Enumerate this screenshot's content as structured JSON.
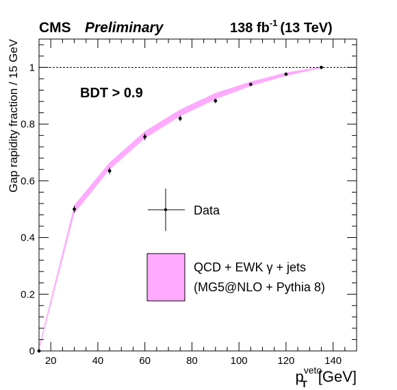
{
  "chart_data": {
    "type": "scatter",
    "title_left": "CMS",
    "title_left_italic": "Preliminary",
    "lumi_value": "138 fb",
    "lumi_exponent": "-1",
    "energy": "(13 TeV)",
    "annotation": "BDT > 0.9",
    "ylabel": "Gap rapidity fraction / 15 GeV",
    "xlabel_main": "p",
    "xlabel_sub": "T",
    "xlabel_sup": "veto",
    "xlabel_unit": "[GeV]",
    "xlim": [
      15,
      150
    ],
    "ylim": [
      0,
      1.1
    ],
    "x_ticks": [
      20,
      40,
      60,
      80,
      100,
      120,
      140
    ],
    "y_ticks": [
      0,
      0.2,
      0.4,
      0.6,
      0.8,
      1
    ],
    "y_tick_labels": [
      "0",
      "0.2",
      "0.4",
      "0.6",
      "0.8",
      "1"
    ],
    "reference_line": 1.0,
    "data": {
      "name": "Data",
      "x": [
        15,
        30,
        45,
        60,
        75,
        90,
        105,
        120,
        135
      ],
      "y": [
        0.0,
        0.5,
        0.635,
        0.755,
        0.82,
        0.882,
        0.94,
        0.976,
        1.0
      ],
      "yerr": [
        0.0,
        0.012,
        0.012,
        0.012,
        0.01,
        0.008,
        0.005,
        0.005,
        0.0
      ]
    },
    "band": {
      "name_line1": "QCD + EWK γ + jets",
      "name_line2": "(MG5@NLO + Pythia 8)",
      "color": "#ffaaff",
      "x": [
        15,
        30,
        45,
        60,
        75,
        90,
        105,
        120,
        135
      ],
      "y_low": [
        0.0,
        0.485,
        0.64,
        0.75,
        0.828,
        0.888,
        0.935,
        0.97,
        0.998
      ],
      "y_high": [
        0.015,
        0.515,
        0.665,
        0.775,
        0.852,
        0.91,
        0.95,
        0.982,
        1.002
      ]
    },
    "grid": false,
    "legend_position": "center"
  }
}
